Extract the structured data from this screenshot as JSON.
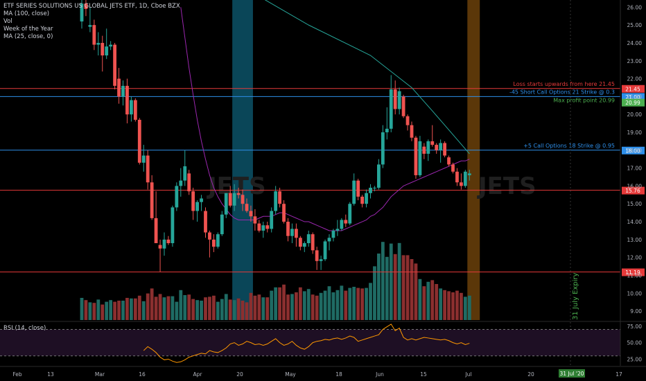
{
  "legend": {
    "title": "ETF SERIES SOLUTIONS US GLOBAL JETS ETF, 1D, Cboe BZX",
    "ma100": "MA (100, close)",
    "vol": "Vol",
    "week": "Week of the Year",
    "ma25": "MA (25, close, 0)"
  },
  "rsi_label": "RSI (14, close)",
  "watermark": "JETS",
  "chart_data": {
    "type": "candlestick",
    "price_axis": {
      "ylim": [
        8.5,
        26.4
      ],
      "ticks": [
        9,
        10,
        11,
        12,
        13,
        14,
        15,
        16,
        17,
        18,
        19,
        20,
        21,
        22,
        23,
        24,
        25,
        26
      ]
    },
    "rsi_axis": {
      "ylim": [
        15,
        80
      ],
      "ticks": [
        25,
        50,
        75
      ],
      "bands": [
        30,
        70
      ]
    },
    "x_labels": [
      "Feb",
      "13",
      "Mar",
      "16",
      "Apr",
      "20",
      "May",
      "18",
      "Jun",
      "15",
      "Jul",
      "20",
      "17"
    ],
    "date_badge": "31 Jul '20",
    "ohlc": [
      [
        25.2,
        26.4,
        24.8,
        26.2
      ],
      [
        26.2,
        26.6,
        25.5,
        25.9
      ],
      [
        24.9,
        26.0,
        24.6,
        25.0
      ],
      [
        25.0,
        25.3,
        23.6,
        23.9
      ],
      [
        23.9,
        24.6,
        23.3,
        24.0
      ],
      [
        24.0,
        24.4,
        22.4,
        23.3
      ],
      [
        23.3,
        24.8,
        23.1,
        23.8
      ],
      [
        23.8,
        24.1,
        23.6,
        23.9
      ],
      [
        23.9,
        24.0,
        21.4,
        21.6
      ],
      [
        22.0,
        22.6,
        20.6,
        21.0
      ],
      [
        21.0,
        21.9,
        20.5,
        21.6
      ],
      [
        21.6,
        22.0,
        19.5,
        20.0
      ],
      [
        20.0,
        21.0,
        19.6,
        20.8
      ],
      [
        20.8,
        20.9,
        19.6,
        19.7
      ],
      [
        19.7,
        19.8,
        17.2,
        17.3
      ],
      [
        17.3,
        18.3,
        16.8,
        17.7
      ],
      [
        17.7,
        18.0,
        15.8,
        16.2
      ],
      [
        16.2,
        16.6,
        14.1,
        14.2
      ],
      [
        14.2,
        15.7,
        12.8,
        12.8
      ],
      [
        12.7,
        13.0,
        11.2,
        12.5
      ],
      [
        12.5,
        13.4,
        12.1,
        13.0
      ],
      [
        13.0,
        13.2,
        12.7,
        12.8
      ],
      [
        12.8,
        14.9,
        12.6,
        14.8
      ],
      [
        14.8,
        16.2,
        14.6,
        16.0
      ],
      [
        16.0,
        17.0,
        15.4,
        16.3
      ],
      [
        16.3,
        18.0,
        16.0,
        17.1
      ],
      [
        16.7,
        16.9,
        15.5,
        15.7
      ],
      [
        15.7,
        15.9,
        14.1,
        14.6
      ],
      [
        14.6,
        15.2,
        14.0,
        15.1
      ],
      [
        15.1,
        15.5,
        14.6,
        15.3
      ],
      [
        14.6,
        14.8,
        13.1,
        13.4
      ],
      [
        13.4,
        13.5,
        12.0,
        13.0
      ],
      [
        13.0,
        13.3,
        12.3,
        12.6
      ],
      [
        12.6,
        13.4,
        12.5,
        13.3
      ],
      [
        13.3,
        14.6,
        13.2,
        14.4
      ],
      [
        14.4,
        15.6,
        14.2,
        15.6
      ],
      [
        15.6,
        16.0,
        14.8,
        14.9
      ],
      [
        14.9,
        16.1,
        14.6,
        15.6
      ],
      [
        15.6,
        15.9,
        15.3,
        15.5
      ],
      [
        15.5,
        15.8,
        14.6,
        15.0
      ],
      [
        15.0,
        15.3,
        14.5,
        14.6
      ],
      [
        14.6,
        14.9,
        14.0,
        14.3
      ],
      [
        14.3,
        14.7,
        13.5,
        13.9
      ],
      [
        13.9,
        14.1,
        13.4,
        13.5
      ],
      [
        13.5,
        14.0,
        13.1,
        13.8
      ],
      [
        13.8,
        14.0,
        13.4,
        13.6
      ],
      [
        13.6,
        14.8,
        13.4,
        14.6
      ],
      [
        14.6,
        16.0,
        14.4,
        15.7
      ],
      [
        15.7,
        15.9,
        14.8,
        15.0
      ],
      [
        15.0,
        15.2,
        13.9,
        14.0
      ],
      [
        14.0,
        14.2,
        12.9,
        13.2
      ],
      [
        13.2,
        13.9,
        12.8,
        13.6
      ],
      [
        13.6,
        13.9,
        12.6,
        13.1
      ],
      [
        13.1,
        13.2,
        12.4,
        12.6
      ],
      [
        12.6,
        12.9,
        12.3,
        12.8
      ],
      [
        12.8,
        13.5,
        12.6,
        13.3
      ],
      [
        13.3,
        13.4,
        12.2,
        12.4
      ],
      [
        12.4,
        12.6,
        11.3,
        11.8
      ],
      [
        11.8,
        12.1,
        11.3,
        11.9
      ],
      [
        11.9,
        13.0,
        11.8,
        12.9
      ],
      [
        12.9,
        13.3,
        12.4,
        13.1
      ],
      [
        13.1,
        13.6,
        12.9,
        13.5
      ],
      [
        13.5,
        14.1,
        13.2,
        13.6
      ],
      [
        13.6,
        14.2,
        13.5,
        14.1
      ],
      [
        14.1,
        14.4,
        13.7,
        13.9
      ],
      [
        13.9,
        15.1,
        13.8,
        15.0
      ],
      [
        15.0,
        16.7,
        14.9,
        16.3
      ],
      [
        16.3,
        16.4,
        15.2,
        15.4
      ],
      [
        15.4,
        15.5,
        14.8,
        15.0
      ],
      [
        15.0,
        15.8,
        14.8,
        15.6
      ],
      [
        15.6,
        16.1,
        15.3,
        15.9
      ],
      [
        15.9,
        16.0,
        15.7,
        15.9
      ],
      [
        15.9,
        17.5,
        15.8,
        17.2
      ],
      [
        17.2,
        19.4,
        17.0,
        19.0
      ],
      [
        19.0,
        20.4,
        18.6,
        19.2
      ],
      [
        19.2,
        22.2,
        19.0,
        21.4
      ],
      [
        21.4,
        21.9,
        20.0,
        20.3
      ],
      [
        20.3,
        21.5,
        20.0,
        21.3
      ],
      [
        21.0,
        21.1,
        19.8,
        19.9
      ],
      [
        19.9,
        20.0,
        19.1,
        19.4
      ],
      [
        19.4,
        19.6,
        18.5,
        18.7
      ],
      [
        18.7,
        18.8,
        16.4,
        16.6
      ],
      [
        16.6,
        18.8,
        16.5,
        18.5
      ],
      [
        18.2,
        18.4,
        17.5,
        17.8
      ],
      [
        17.8,
        18.6,
        17.4,
        18.5
      ],
      [
        18.5,
        19.4,
        18.2,
        18.3
      ],
      [
        18.3,
        18.4,
        17.8,
        18.0
      ],
      [
        18.0,
        18.6,
        17.3,
        18.4
      ],
      [
        18.4,
        18.5,
        17.6,
        17.7
      ],
      [
        17.6,
        17.7,
        17.1,
        17.2
      ],
      [
        17.2,
        17.3,
        16.7,
        16.8
      ],
      [
        16.8,
        17.0,
        16.0,
        16.2
      ],
      [
        16.2,
        16.7,
        15.8,
        16.0
      ],
      [
        16.0,
        16.9,
        15.9,
        16.8
      ],
      [
        16.6,
        16.9,
        16.3,
        16.7
      ]
    ],
    "volume": [
      40,
      36,
      32,
      31,
      37,
      28,
      33,
      36,
      33,
      35,
      35,
      40,
      39,
      39,
      44,
      34,
      48,
      57,
      42,
      47,
      41,
      43,
      43,
      33,
      54,
      45,
      46,
      38,
      36,
      35,
      41,
      42,
      44,
      33,
      38,
      47,
      37,
      36,
      39,
      35,
      32,
      49,
      44,
      46,
      41,
      41,
      53,
      59,
      59,
      64,
      46,
      47,
      50,
      59,
      52,
      56,
      46,
      44,
      49,
      53,
      61,
      50,
      54,
      62,
      53,
      58,
      60,
      58,
      57,
      58,
      67,
      97,
      120,
      141,
      114,
      138,
      119,
      139,
      117,
      117,
      110,
      102,
      74,
      61,
      69,
      72,
      65,
      57,
      54,
      52,
      50,
      53,
      49,
      42,
      44
    ],
    "volume_ylim": [
      0,
      150
    ],
    "ma25": [
      null,
      null,
      null,
      null,
      null,
      null,
      null,
      null,
      null,
      null,
      null,
      null,
      null,
      null,
      null,
      null,
      null,
      null,
      null,
      null,
      null,
      null,
      null,
      null,
      26.0,
      24.3,
      22.6,
      21.1,
      19.7,
      18.5,
      17.5,
      16.6,
      15.9,
      15.4,
      15.0,
      14.7,
      14.4,
      14.2,
      14.1,
      14.1,
      14.1,
      14.1,
      14.1,
      14.2,
      14.3,
      14.3,
      14.3,
      14.4,
      14.5,
      14.5,
      14.4,
      14.3,
      14.2,
      14.1,
      14.0,
      14.0,
      13.9,
      13.8,
      13.7,
      13.6,
      13.5,
      13.5,
      13.5,
      13.5,
      13.6,
      13.7,
      13.8,
      13.9,
      14.0,
      14.1,
      14.3,
      14.4,
      14.6,
      14.8,
      15.1,
      15.4,
      15.6,
      15.8,
      16.0,
      16.1,
      16.2,
      16.3,
      16.4,
      16.5,
      16.6,
      16.7,
      16.8,
      16.9,
      17.0,
      17.1,
      17.2,
      17.3,
      17.4,
      17.4,
      17.5
    ],
    "ma100": [
      [
        24,
        30.0
      ],
      [
        40,
        27.0
      ],
      [
        55,
        25.0
      ],
      [
        70,
        23.3
      ],
      [
        80,
        21.5
      ],
      [
        85,
        20.2
      ],
      [
        94,
        17.8
      ]
    ],
    "rsi": [
      null,
      null,
      null,
      null,
      null,
      null,
      null,
      null,
      null,
      null,
      null,
      null,
      null,
      null,
      null,
      38,
      44,
      40,
      35,
      28,
      24,
      25,
      22,
      20,
      21,
      24,
      28,
      30,
      32,
      34,
      33,
      38,
      36,
      35,
      38,
      42,
      48,
      50,
      46,
      48,
      52,
      50,
      47,
      48,
      46,
      48,
      52,
      56,
      50,
      46,
      48,
      52,
      46,
      42,
      40,
      44,
      50,
      52,
      53,
      55,
      54,
      56,
      57,
      55,
      57,
      60,
      58,
      52,
      54,
      56,
      58,
      60,
      62,
      70,
      74,
      78,
      68,
      72,
      58,
      54,
      56,
      54,
      56,
      58,
      57,
      56,
      55,
      54,
      55,
      53,
      50,
      48,
      50,
      47,
      49
    ],
    "hlines": [
      {
        "value": 21.45,
        "color": "#e63a3a",
        "label": "Loss starts upwards from here 21.45",
        "badge": "21.45"
      },
      {
        "value": 21.0,
        "color": "#2e8fea",
        "label": "-45 Short Call Options 21 Strike @ 0.3",
        "badge": "21.00"
      },
      {
        "value": 20.99,
        "color": "#4caf50",
        "label": "Max profit point 20.99",
        "badge": "20.99",
        "nolines": true
      },
      {
        "value": 18.0,
        "color": "#2e8fea",
        "label": "+5 Call Options 18 Strike @ 0.95",
        "badge": "18.00"
      },
      {
        "value": 15.76,
        "color": "#e63a3a",
        "label": "",
        "badge": "15.76"
      },
      {
        "value": 11.19,
        "color": "#e63a3a",
        "label": "",
        "badge": "11.19"
      }
    ],
    "highlight_bands": [
      {
        "start": 37,
        "end": 41,
        "color": "#0e5d76"
      },
      {
        "start": 94,
        "end": 96,
        "color": "#7a4a0c"
      }
    ],
    "expiry_label": "31 July Expiry",
    "colors": {
      "up": "#26a69a",
      "down": "#ef5350",
      "up_vol": "#1f6b64",
      "down_vol": "#8b2f2f",
      "ma25": "#9c27b0",
      "ma100": "#26a69a",
      "rsi": "#ff9800"
    }
  }
}
